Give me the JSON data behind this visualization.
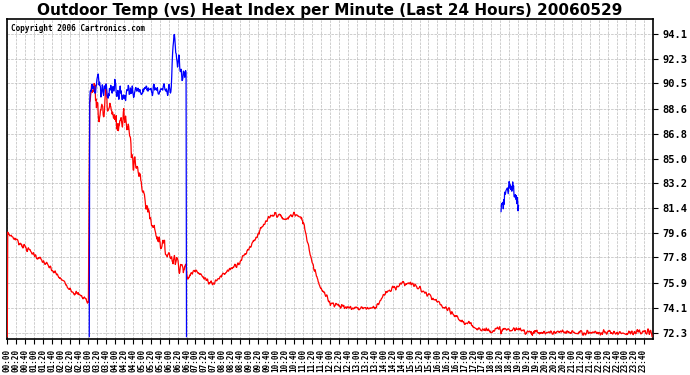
{
  "title": "Outdoor Temp (vs) Heat Index per Minute (Last 24 Hours) 20060529",
  "copyright": "Copyright 2006 Cartronics.com",
  "yticks": [
    72.3,
    74.1,
    75.9,
    77.8,
    79.6,
    81.4,
    83.2,
    85.0,
    86.8,
    88.6,
    90.5,
    92.3,
    94.1
  ],
  "ylim": [
    71.8,
    95.2
  ],
  "background_color": "#ffffff",
  "plot_bg_color": "#ffffff",
  "grid_color": "#bbbbbb",
  "red_color": "#ff0000",
  "blue_color": "#0000ff",
  "title_fontsize": 11
}
